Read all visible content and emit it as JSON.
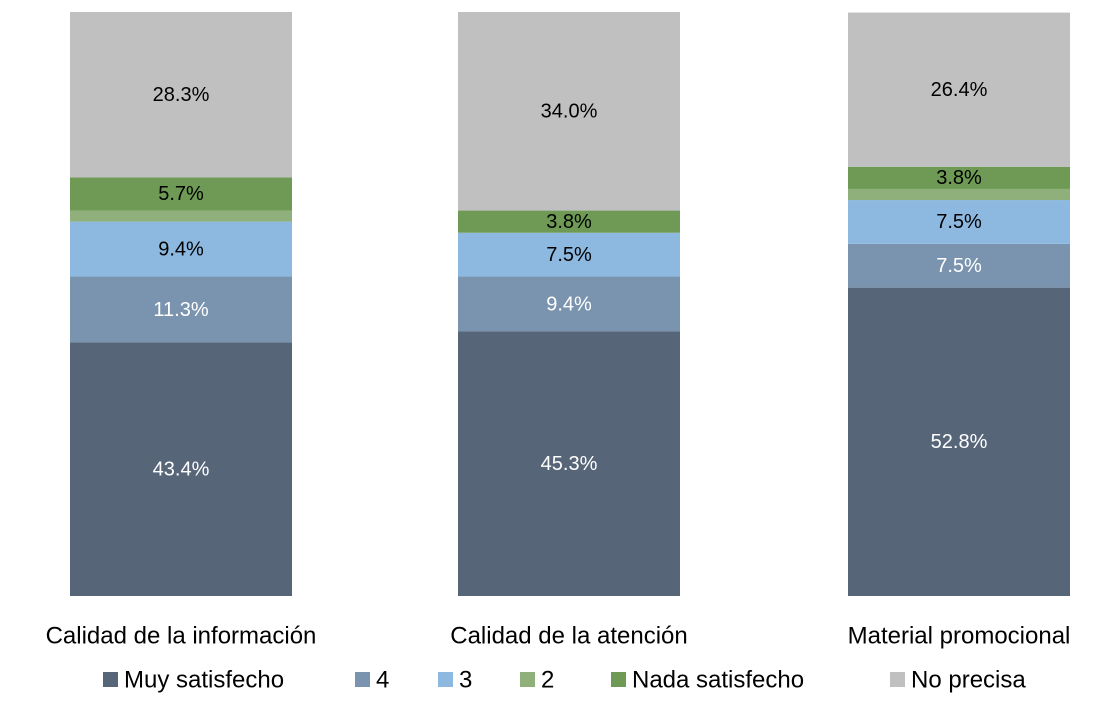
{
  "chart_data": {
    "type": "stacked_bar",
    "categories": [
      "Calidad de la información",
      "Calidad de la atención",
      "Material promocional"
    ],
    "ylim": [
      0,
      100
    ],
    "series": [
      {
        "name": "Muy satisfecho",
        "color": "#576579",
        "label_color": "#ffffff",
        "values": [
          43.4,
          45.3,
          52.8
        ],
        "value_labels": [
          "43.4%",
          "45.3%",
          "52.8%"
        ]
      },
      {
        "name": "4",
        "color": "#7a93ae",
        "label_color": "#ffffff",
        "values": [
          11.3,
          9.4,
          7.5
        ],
        "value_labels": [
          "11.3%",
          "9.4%",
          "7.5%"
        ]
      },
      {
        "name": "3",
        "color": "#8db8e0",
        "label_color": "#000000",
        "values": [
          9.4,
          7.5,
          7.5
        ],
        "value_labels": [
          "9.4%",
          "7.5%",
          "7.5%"
        ]
      },
      {
        "name": "2",
        "color": "#8fb07a",
        "values": [
          1.9,
          0,
          1.9
        ]
      },
      {
        "name": "Nada satisfecho",
        "color": "#6e9a55",
        "label_color": "#000000",
        "values": [
          5.7,
          3.8,
          3.8
        ],
        "value_labels": [
          "5.7%",
          "3.8%",
          "3.8%"
        ]
      },
      {
        "name": "No precisa",
        "color": "#c0c0c0",
        "label_color": "#000000",
        "values": [
          28.3,
          34.0,
          26.4
        ],
        "value_labels": [
          "28.3%",
          "34.0%",
          "26.4%"
        ]
      }
    ]
  }
}
